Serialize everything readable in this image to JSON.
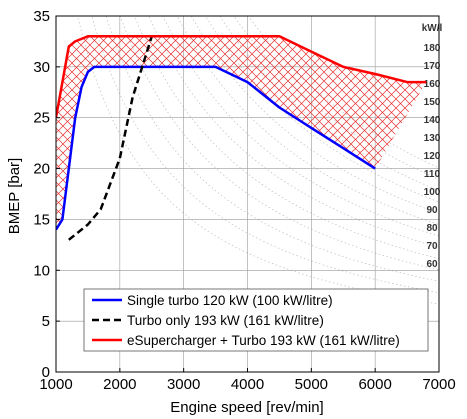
{
  "chart_data": {
    "type": "line",
    "xlabel": "Engine speed [rev/min]",
    "ylabel": "BMEP [bar]",
    "xlim": [
      1000,
      7000
    ],
    "ylim": [
      0,
      35
    ],
    "x_ticks": [
      "1000",
      "2000",
      "3000",
      "4000",
      "5000",
      "6000",
      "7000"
    ],
    "y_ticks": [
      "0",
      "5",
      "10",
      "15",
      "20",
      "25",
      "30",
      "35"
    ],
    "grid": true,
    "legend_position": "bottom-center",
    "series": [
      {
        "name": "Single turbo 120 kW (100 kW/litre)",
        "color": "#0000ff",
        "style": "solid",
        "x": [
          1000,
          1100,
          1200,
          1300,
          1400,
          1500,
          1600,
          2000,
          3000,
          3500,
          4000,
          4500,
          5000,
          5500,
          6000
        ],
        "y": [
          14,
          15,
          20,
          25,
          28,
          29.5,
          30,
          30,
          30,
          30,
          28.5,
          26,
          24,
          22,
          20
        ]
      },
      {
        "name": "Turbo only 193 kW (161 kW/litre)",
        "color": "#000000",
        "style": "dashed",
        "x": [
          1200,
          1500,
          1700,
          2000,
          2200,
          2400,
          2500
        ],
        "y": [
          13,
          14.5,
          16,
          21,
          27,
          31,
          33
        ]
      },
      {
        "name": "eSupercharger + Turbo 193 kW (161 kW/litre)",
        "color": "#ff0000",
        "style": "solid",
        "x": [
          1000,
          1100,
          1200,
          1300,
          1500,
          2000,
          3000,
          4000,
          4500,
          5000,
          5500,
          6000,
          6500,
          6800
        ],
        "y": [
          25,
          28.5,
          32,
          32.5,
          33,
          33,
          33,
          33,
          33,
          31.5,
          30,
          29.3,
          28.5,
          28.5
        ]
      }
    ],
    "power_contours": {
      "unit_label": "kW/l",
      "labels": [
        "180",
        "170",
        "160",
        "150",
        "140",
        "130",
        "120",
        "110",
        "100",
        "90",
        "80",
        "70",
        "60"
      ],
      "values": [
        180,
        170,
        160,
        150,
        140,
        130,
        120,
        110,
        100,
        90,
        80,
        70,
        60
      ]
    },
    "colors": {
      "blue": "#0000ff",
      "red": "#ff0000",
      "black": "#000000",
      "hatch": "#e83030"
    }
  }
}
